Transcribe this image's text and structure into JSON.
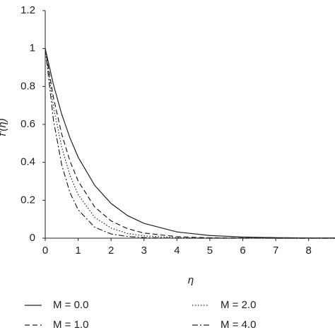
{
  "chart_data": {
    "type": "line",
    "x_label": "η",
    "y_label": "f′(η)",
    "x": [
      0,
      0.25,
      0.5,
      0.75,
      1,
      1.5,
      2,
      2.5,
      3,
      4,
      5,
      6,
      7,
      8,
      8.8
    ],
    "series": [
      {
        "name": "M = 0.0",
        "color": "#222222",
        "dash": "solid",
        "values": [
          1,
          0.809,
          0.654,
          0.529,
          0.427,
          0.279,
          0.183,
          0.119,
          0.078,
          0.033,
          0.014,
          0.006,
          0.003,
          0.001,
          0.001
        ]
      },
      {
        "name": "M = 1.0",
        "color": "#222222",
        "dash": "dashed",
        "values": [
          1,
          0.741,
          0.549,
          0.407,
          0.301,
          0.165,
          0.091,
          0.05,
          0.027,
          0.008,
          0.002,
          0.001,
          0,
          0,
          0
        ]
      },
      {
        "name": "M = 2.0",
        "color": "#222222",
        "dash": "dotted",
        "values": [
          1,
          0.692,
          0.48,
          0.332,
          0.23,
          0.11,
          0.053,
          0.025,
          0.012,
          0.003,
          0.001,
          0,
          0,
          0,
          0
        ]
      },
      {
        "name": "M = 4.0",
        "color": "#222222",
        "dash": "dashdot",
        "values": [
          1,
          0.622,
          0.387,
          0.241,
          0.15,
          0.058,
          0.022,
          0.009,
          0.003,
          0,
          0,
          0,
          0,
          0,
          0
        ]
      }
    ],
    "xlim": [
      0,
      8.8
    ],
    "ylim": [
      0,
      1.2
    ],
    "xticks": [
      0,
      1,
      2,
      3,
      4,
      5,
      6,
      7,
      8
    ],
    "yticks": [
      0,
      0.2,
      0.4,
      0.6,
      0.8,
      1,
      1.2
    ],
    "legend": "bottom"
  }
}
